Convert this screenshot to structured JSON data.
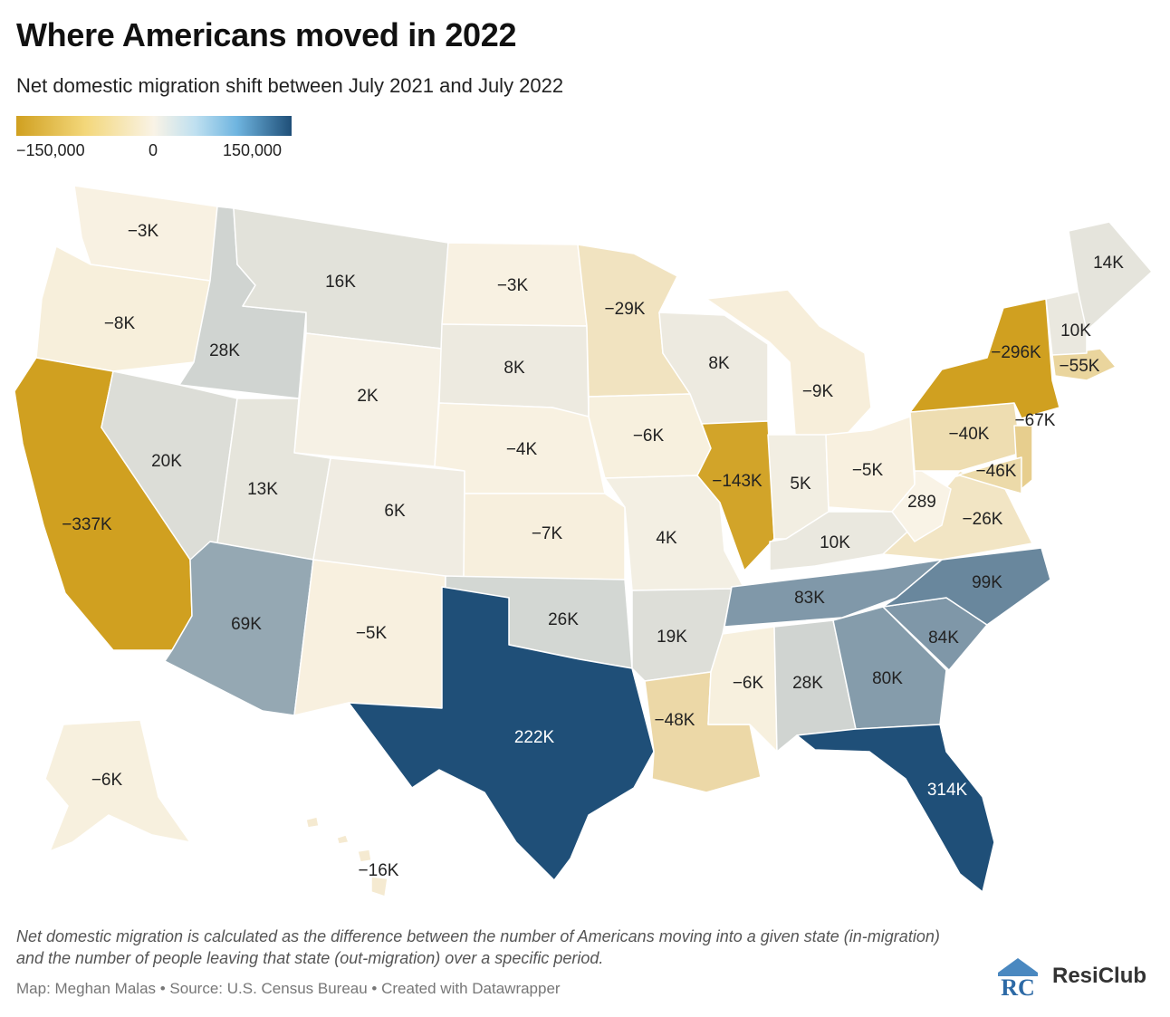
{
  "title": "Where Americans moved in 2022",
  "subtitle": "Net domestic migration shift between July 2021 and July 2022",
  "legend": {
    "min_label": "−150,000",
    "mid_label": "0",
    "max_label": "150,000",
    "min_value": -150000,
    "max_value": 150000,
    "colors": {
      "negative": "#d0a020",
      "neutral": "#f9f3e6",
      "positive": "#1f4f78"
    }
  },
  "states": [
    {
      "code": "WA",
      "label": "−3K",
      "value": -3
    },
    {
      "code": "OR",
      "label": "−8K",
      "value": -8
    },
    {
      "code": "CA",
      "label": "−337K",
      "value": -337
    },
    {
      "code": "ID",
      "label": "28K",
      "value": 28
    },
    {
      "code": "NV",
      "label": "20K",
      "value": 20
    },
    {
      "code": "MT",
      "label": "16K",
      "value": 16
    },
    {
      "code": "WY",
      "label": "2K",
      "value": 2
    },
    {
      "code": "UT",
      "label": "13K",
      "value": 13
    },
    {
      "code": "AZ",
      "label": "69K",
      "value": 69
    },
    {
      "code": "CO",
      "label": "6K",
      "value": 6
    },
    {
      "code": "NM",
      "label": "−5K",
      "value": -5
    },
    {
      "code": "ND",
      "label": "−3K",
      "value": -3
    },
    {
      "code": "SD",
      "label": "8K",
      "value": 8
    },
    {
      "code": "NE",
      "label": "−4K",
      "value": -4
    },
    {
      "code": "KS",
      "label": "−7K",
      "value": -7
    },
    {
      "code": "OK",
      "label": "26K",
      "value": 26
    },
    {
      "code": "TX",
      "label": "222K",
      "value": 222
    },
    {
      "code": "MN",
      "label": "−29K",
      "value": -29
    },
    {
      "code": "IA",
      "label": "−6K",
      "value": -6
    },
    {
      "code": "MO",
      "label": "4K",
      "value": 4
    },
    {
      "code": "AR",
      "label": "19K",
      "value": 19
    },
    {
      "code": "LA",
      "label": "−48K",
      "value": -48
    },
    {
      "code": "WI",
      "label": "8K",
      "value": 8
    },
    {
      "code": "IL",
      "label": "−143K",
      "value": -143
    },
    {
      "code": "MI",
      "label": "−9K",
      "value": -9
    },
    {
      "code": "IN",
      "label": "5K",
      "value": 5
    },
    {
      "code": "OH",
      "label": "−5K",
      "value": -5
    },
    {
      "code": "KY",
      "label": "10K",
      "value": 10
    },
    {
      "code": "TN",
      "label": "83K",
      "value": 83
    },
    {
      "code": "MS",
      "label": "−6K",
      "value": -6
    },
    {
      "code": "AL",
      "label": "28K",
      "value": 28
    },
    {
      "code": "GA",
      "label": "80K",
      "value": 80
    },
    {
      "code": "FL",
      "label": "314K",
      "value": 314
    },
    {
      "code": "SC",
      "label": "84K",
      "value": 84
    },
    {
      "code": "NC",
      "label": "99K",
      "value": 99
    },
    {
      "code": "VA",
      "label": "−26K",
      "value": -26
    },
    {
      "code": "WV",
      "label": "289",
      "value": 0.289
    },
    {
      "code": "PA",
      "label": "−40K",
      "value": -40
    },
    {
      "code": "NY",
      "label": "−296K",
      "value": -296
    },
    {
      "code": "NJ",
      "label": "−67K",
      "value": -67
    },
    {
      "code": "MD",
      "label": "−46K",
      "value": -46
    },
    {
      "code": "MA",
      "label": "−55K",
      "value": -55
    },
    {
      "code": "NH",
      "label": "10K",
      "value": 10
    },
    {
      "code": "ME",
      "label": "14K",
      "value": 14
    },
    {
      "code": "AK",
      "label": "−6K",
      "value": -6
    },
    {
      "code": "HI",
      "label": "−16K",
      "value": -16
    }
  ],
  "note": "Net domestic migration is calculated as the difference between the number of Americans moving into a given state (in-migration) and the number of people leaving that state (out-migration) over a specific period.",
  "credit": "Map: Meghan Malas • Source: U.S. Census Bureau • Created with Datawrapper",
  "brand": {
    "name": "ResiClub",
    "mark": "RC"
  }
}
